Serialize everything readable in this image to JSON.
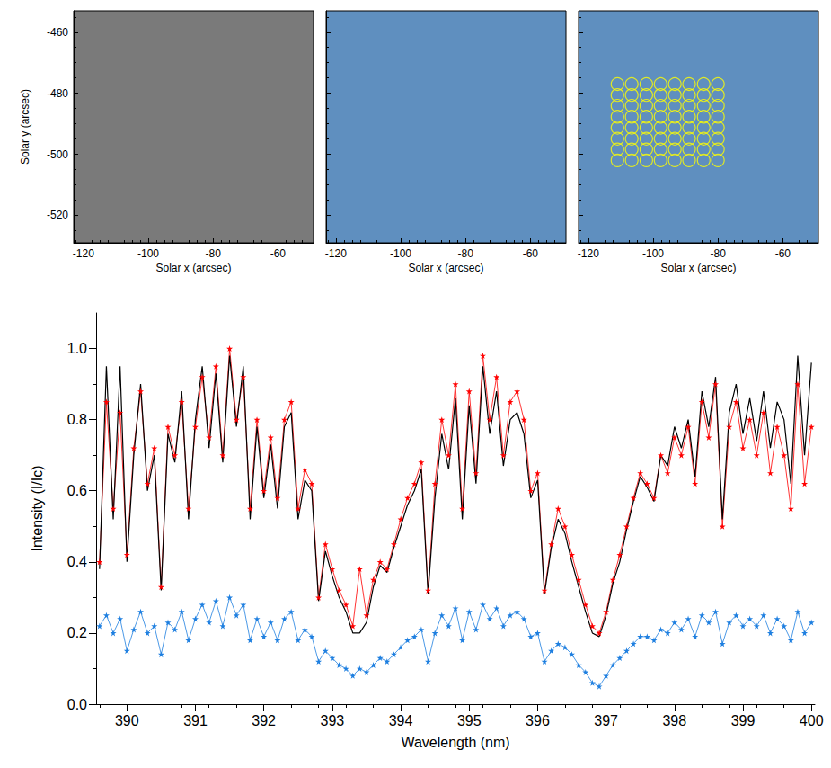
{
  "chart_data": [
    {
      "type": "image",
      "color": "#7a7a7a",
      "xlabel": "Solar x (arcsec)",
      "ylabel": "Solar y (arcsec)",
      "xlim": [
        -123,
        -49
      ],
      "ylim": [
        -529,
        -453
      ],
      "xticks": [
        -120,
        -100,
        -80,
        -60
      ],
      "yticks": [
        -520,
        -500,
        -480,
        -460
      ],
      "grid": false
    },
    {
      "type": "image",
      "color": "#5f8fbf",
      "xlabel": "Solar x (arcsec)",
      "xlim": [
        -123,
        -49
      ],
      "ylim": [
        -529,
        -453
      ],
      "xticks": [
        -120,
        -100,
        -80,
        -60
      ],
      "yticks": [
        -520,
        -500,
        -480,
        -460
      ],
      "tick_labels": "x",
      "grid": false
    },
    {
      "type": "scatter",
      "color": "#5f8fbf",
      "xlabel": "Solar x (arcsec)",
      "xlim": [
        -123,
        -49
      ],
      "ylim": [
        -529,
        -453
      ],
      "xticks": [
        -120,
        -100,
        -80,
        -60
      ],
      "yticks": [
        -520,
        -500,
        -480,
        -460
      ],
      "tick_labels": "x",
      "grid": false,
      "series": [
        {
          "color": "#ffff00",
          "marker": "circle",
          "x": [
            -111,
            -106.6,
            -102.1,
            -97.7,
            -93.3,
            -88.9,
            -84.4,
            -80,
            -111,
            -106.6,
            -102.1,
            -97.7,
            -93.3,
            -88.9,
            -84.4,
            -80,
            -111,
            -106.6,
            -102.1,
            -97.7,
            -93.3,
            -88.9,
            -84.4,
            -80,
            -111,
            -106.6,
            -102.1,
            -97.7,
            -93.3,
            -88.9,
            -84.4,
            -80,
            -111,
            -106.6,
            -102.1,
            -97.7,
            -93.3,
            -88.9,
            -84.4,
            -80,
            -111,
            -106.6,
            -102.1,
            -97.7,
            -93.3,
            -88.9,
            -84.4,
            -80,
            -111,
            -106.6,
            -102.1,
            -97.7,
            -93.3,
            -88.9,
            -84.4,
            -80,
            -111,
            -106.6,
            -102.1,
            -97.7,
            -93.3,
            -88.9,
            -84.4,
            -80
          ],
          "values": [
            -477,
            -477,
            -477,
            -477,
            -477,
            -477,
            -477,
            -477,
            -480.6,
            -480.6,
            -480.6,
            -480.6,
            -480.6,
            -480.6,
            -480.6,
            -480.6,
            -484.1,
            -484.1,
            -484.1,
            -484.1,
            -484.1,
            -484.1,
            -484.1,
            -484.1,
            -487.7,
            -487.7,
            -487.7,
            -487.7,
            -487.7,
            -487.7,
            -487.7,
            -487.7,
            -491.3,
            -491.3,
            -491.3,
            -491.3,
            -491.3,
            -491.3,
            -491.3,
            -491.3,
            -494.9,
            -494.9,
            -494.9,
            -494.9,
            -494.9,
            -494.9,
            -494.9,
            -494.9,
            -498.4,
            -498.4,
            -498.4,
            -498.4,
            -498.4,
            -498.4,
            -498.4,
            -498.4,
            -502,
            -502,
            -502,
            -502,
            -502,
            -502,
            -502,
            -502
          ]
        }
      ]
    },
    {
      "type": "line",
      "xlabel": "Wavelength (nm)",
      "ylabel": "Intensity (I/Ic)",
      "grid": false,
      "xlim": [
        389.55,
        400.05
      ],
      "ylim": [
        0,
        1.1
      ],
      "xticks": [
        390,
        391,
        392,
        393,
        394,
        395,
        396,
        397,
        398,
        399,
        400
      ],
      "yticks": [
        {
          "value": 0,
          "label": "0.0"
        },
        0.2,
        0.4,
        0.6,
        0.8,
        {
          "value": 1,
          "label": "1.0"
        }
      ],
      "x": [
        389.6,
        389.7,
        389.8,
        389.9,
        390.0,
        390.1,
        390.2,
        390.3,
        390.4,
        390.5,
        390.6,
        390.7,
        390.8,
        390.9,
        391.0,
        391.1,
        391.2,
        391.3,
        391.4,
        391.5,
        391.6,
        391.7,
        391.8,
        391.9,
        392.0,
        392.1,
        392.2,
        392.3,
        392.4,
        392.5,
        392.6,
        392.7,
        392.8,
        392.9,
        393.0,
        393.1,
        393.2,
        393.3,
        393.4,
        393.5,
        393.6,
        393.7,
        393.8,
        393.9,
        394.0,
        394.1,
        394.2,
        394.3,
        394.4,
        394.5,
        394.6,
        394.7,
        394.8,
        394.9,
        395.0,
        395.1,
        395.2,
        395.3,
        395.4,
        395.5,
        395.6,
        395.7,
        395.8,
        395.9,
        396.0,
        396.1,
        396.2,
        396.3,
        396.4,
        396.5,
        396.6,
        396.7,
        396.8,
        396.9,
        397.0,
        397.1,
        397.2,
        397.3,
        397.4,
        397.5,
        397.6,
        397.7,
        397.8,
        397.9,
        398.0,
        398.1,
        398.2,
        398.3,
        398.4,
        398.5,
        398.6,
        398.7,
        398.8,
        398.9,
        399.0,
        399.1,
        399.2,
        399.3,
        399.4,
        399.5,
        399.6,
        399.7,
        399.8,
        399.9,
        400.0
      ],
      "series": [
        {
          "color": "#ff0000",
          "marker": "star",
          "line_style": "solid",
          "values": [
            0.4,
            0.85,
            0.55,
            0.82,
            0.42,
            0.72,
            0.88,
            0.62,
            0.72,
            0.33,
            0.78,
            0.7,
            0.85,
            0.55,
            0.78,
            0.92,
            0.75,
            0.95,
            0.7,
            1.0,
            0.8,
            0.92,
            0.55,
            0.8,
            0.6,
            0.75,
            0.58,
            0.8,
            0.85,
            0.55,
            0.66,
            0.62,
            0.3,
            0.45,
            0.38,
            0.32,
            0.28,
            0.22,
            0.38,
            0.25,
            0.35,
            0.4,
            0.38,
            0.45,
            0.52,
            0.58,
            0.62,
            0.68,
            0.32,
            0.62,
            0.8,
            0.7,
            0.9,
            0.55,
            0.88,
            0.65,
            0.98,
            0.8,
            0.92,
            0.7,
            0.85,
            0.88,
            0.8,
            0.6,
            0.65,
            0.32,
            0.45,
            0.55,
            0.5,
            0.42,
            0.35,
            0.28,
            0.22,
            0.2,
            0.26,
            0.35,
            0.42,
            0.5,
            0.58,
            0.65,
            0.62,
            0.58,
            0.7,
            0.65,
            0.75,
            0.7,
            0.78,
            0.62,
            0.85,
            0.75,
            0.9,
            0.5,
            0.78,
            0.85,
            0.72,
            0.8,
            0.7,
            0.82,
            0.65,
            0.78,
            0.7,
            0.55,
            0.9,
            0.62,
            0.78
          ]
        },
        {
          "color": "#000000",
          "marker": "none",
          "line_style": "solid",
          "values": [
            0.38,
            0.95,
            0.52,
            0.95,
            0.4,
            0.7,
            0.9,
            0.6,
            0.7,
            0.32,
            0.76,
            0.68,
            0.88,
            0.52,
            0.8,
            0.95,
            0.72,
            0.93,
            0.68,
            0.98,
            0.78,
            0.95,
            0.52,
            0.78,
            0.58,
            0.73,
            0.55,
            0.78,
            0.82,
            0.52,
            0.63,
            0.6,
            0.29,
            0.43,
            0.36,
            0.3,
            0.26,
            0.2,
            0.2,
            0.23,
            0.33,
            0.39,
            0.37,
            0.44,
            0.5,
            0.56,
            0.6,
            0.66,
            0.31,
            0.58,
            0.76,
            0.66,
            0.86,
            0.52,
            0.84,
            0.62,
            0.95,
            0.76,
            0.88,
            0.67,
            0.8,
            0.82,
            0.76,
            0.58,
            0.63,
            0.31,
            0.44,
            0.52,
            0.48,
            0.4,
            0.33,
            0.26,
            0.2,
            0.19,
            0.25,
            0.34,
            0.4,
            0.49,
            0.57,
            0.64,
            0.61,
            0.57,
            0.7,
            0.67,
            0.78,
            0.72,
            0.8,
            0.64,
            0.88,
            0.78,
            0.92,
            0.52,
            0.82,
            0.9,
            0.76,
            0.86,
            0.74,
            0.88,
            0.72,
            0.85,
            0.8,
            0.62,
            0.98,
            0.7,
            0.96
          ]
        },
        {
          "color": "#1e7fe0",
          "marker": "star",
          "line_style": "solid",
          "values": [
            0.22,
            0.25,
            0.2,
            0.24,
            0.15,
            0.21,
            0.26,
            0.2,
            0.22,
            0.14,
            0.23,
            0.21,
            0.26,
            0.18,
            0.24,
            0.28,
            0.23,
            0.29,
            0.22,
            0.3,
            0.25,
            0.28,
            0.18,
            0.24,
            0.19,
            0.23,
            0.18,
            0.24,
            0.26,
            0.18,
            0.21,
            0.19,
            0.12,
            0.15,
            0.13,
            0.11,
            0.1,
            0.08,
            0.1,
            0.09,
            0.11,
            0.13,
            0.12,
            0.14,
            0.16,
            0.18,
            0.19,
            0.21,
            0.12,
            0.2,
            0.25,
            0.22,
            0.27,
            0.18,
            0.26,
            0.21,
            0.28,
            0.24,
            0.27,
            0.22,
            0.25,
            0.26,
            0.24,
            0.19,
            0.2,
            0.12,
            0.15,
            0.17,
            0.16,
            0.14,
            0.11,
            0.09,
            0.06,
            0.05,
            0.08,
            0.11,
            0.13,
            0.15,
            0.17,
            0.19,
            0.19,
            0.18,
            0.21,
            0.2,
            0.23,
            0.21,
            0.24,
            0.19,
            0.25,
            0.23,
            0.26,
            0.17,
            0.23,
            0.25,
            0.22,
            0.24,
            0.22,
            0.25,
            0.2,
            0.24,
            0.22,
            0.18,
            0.26,
            0.2,
            0.23
          ]
        }
      ]
    }
  ]
}
